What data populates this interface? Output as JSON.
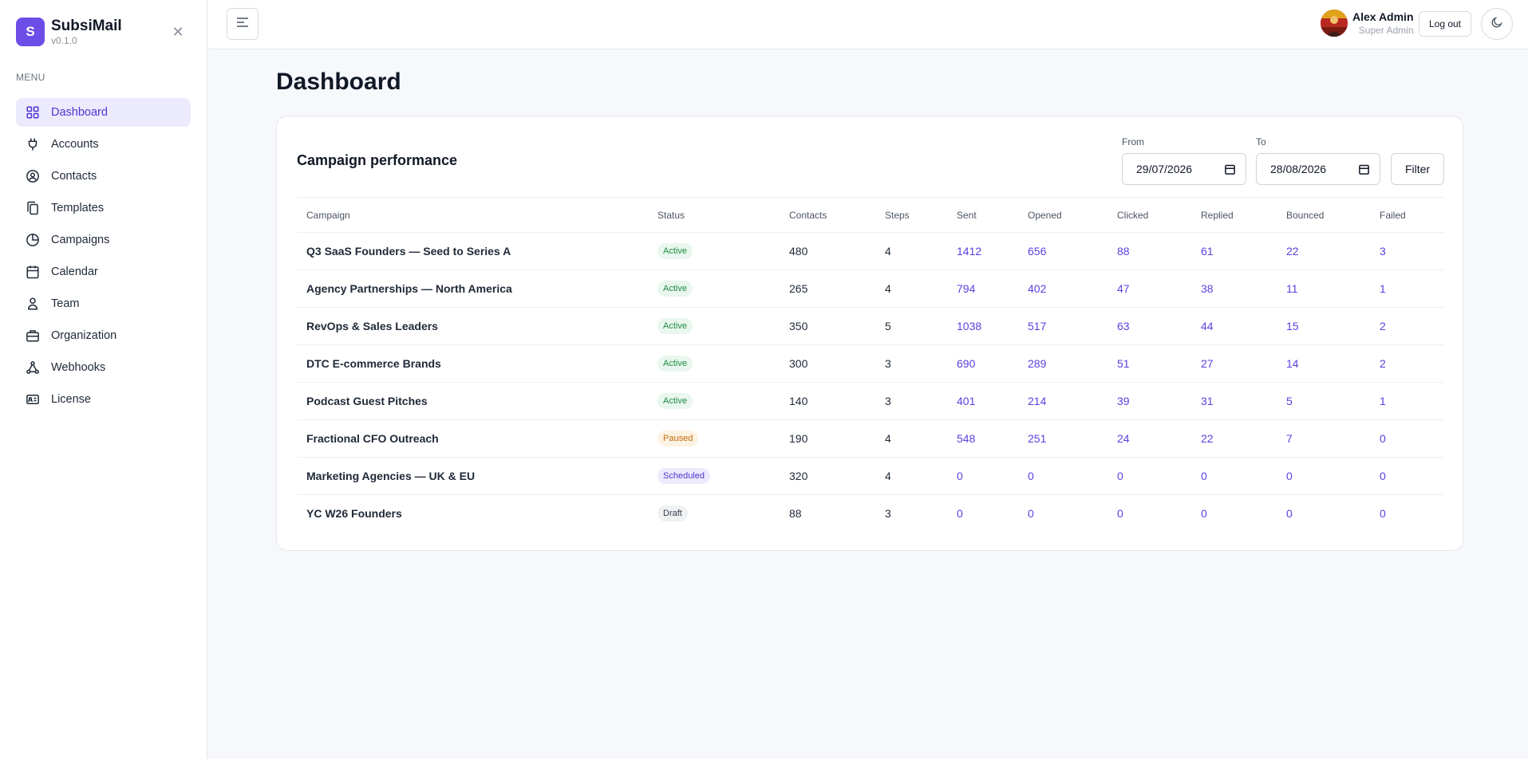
{
  "app": {
    "name": "SubsiMail",
    "logo_letter": "S",
    "version": "v0.1.0"
  },
  "sidebar": {
    "menu_label": "MENU",
    "items": [
      {
        "label": "Dashboard",
        "icon": "grid-icon",
        "active": true
      },
      {
        "label": "Accounts",
        "icon": "plug-icon"
      },
      {
        "label": "Contacts",
        "icon": "user-circle-icon"
      },
      {
        "label": "Templates",
        "icon": "copy-icon"
      },
      {
        "label": "Campaigns",
        "icon": "pie-chart-icon"
      },
      {
        "label": "Calendar",
        "icon": "calendar-icon"
      },
      {
        "label": "Team",
        "icon": "person-icon"
      },
      {
        "label": "Organization",
        "icon": "briefcase-icon"
      },
      {
        "label": "Webhooks",
        "icon": "webhook-icon"
      },
      {
        "label": "License",
        "icon": "id-card-icon"
      }
    ]
  },
  "topbar": {
    "user_name": "Alex Admin",
    "user_role": "Super Admin",
    "logout_label": "Log out"
  },
  "main": {
    "title": "Dashboard",
    "card": {
      "title": "Campaign performance",
      "from_label": "From",
      "from_value": "29/07/2026",
      "to_label": "To",
      "to_value": "28/08/2026",
      "filter_label": "Filter"
    }
  },
  "table": {
    "columns": [
      "Campaign",
      "Status",
      "Contacts",
      "Steps",
      "Sent",
      "Opened",
      "Clicked",
      "Replied",
      "Bounced",
      "Failed"
    ],
    "rows": [
      {
        "campaign": "Q3 SaaS Founders — Seed to Series A",
        "status": "Active",
        "contacts": "480",
        "steps": "4",
        "sent": "1412",
        "opened": "656",
        "clicked": "88",
        "replied": "61",
        "bounced": "22",
        "failed": "3"
      },
      {
        "campaign": "Agency Partnerships — North America",
        "status": "Active",
        "contacts": "265",
        "steps": "4",
        "sent": "794",
        "opened": "402",
        "clicked": "47",
        "replied": "38",
        "bounced": "11",
        "failed": "1"
      },
      {
        "campaign": "RevOps & Sales Leaders",
        "status": "Active",
        "contacts": "350",
        "steps": "5",
        "sent": "1038",
        "opened": "517",
        "clicked": "63",
        "replied": "44",
        "bounced": "15",
        "failed": "2"
      },
      {
        "campaign": "DTC E-commerce Brands",
        "status": "Active",
        "contacts": "300",
        "steps": "3",
        "sent": "690",
        "opened": "289",
        "clicked": "51",
        "replied": "27",
        "bounced": "14",
        "failed": "2"
      },
      {
        "campaign": "Podcast Guest Pitches",
        "status": "Active",
        "contacts": "140",
        "steps": "3",
        "sent": "401",
        "opened": "214",
        "clicked": "39",
        "replied": "31",
        "bounced": "5",
        "failed": "1"
      },
      {
        "campaign": "Fractional CFO Outreach",
        "status": "Paused",
        "contacts": "190",
        "steps": "4",
        "sent": "548",
        "opened": "251",
        "clicked": "24",
        "replied": "22",
        "bounced": "7",
        "failed": "0"
      },
      {
        "campaign": "Marketing Agencies — UK & EU",
        "status": "Scheduled",
        "contacts": "320",
        "steps": "4",
        "sent": "0",
        "opened": "0",
        "clicked": "0",
        "replied": "0",
        "bounced": "0",
        "failed": "0"
      },
      {
        "campaign": "YC W26 Founders",
        "status": "Draft",
        "contacts": "88",
        "steps": "3",
        "sent": "0",
        "opened": "0",
        "clicked": "0",
        "replied": "0",
        "bounced": "0",
        "failed": "0"
      }
    ]
  },
  "colors": {
    "accent": "#6d4de8",
    "link": "#5b3fe0",
    "active_badge": "#1f8a44",
    "paused_badge": "#c26a0a"
  }
}
